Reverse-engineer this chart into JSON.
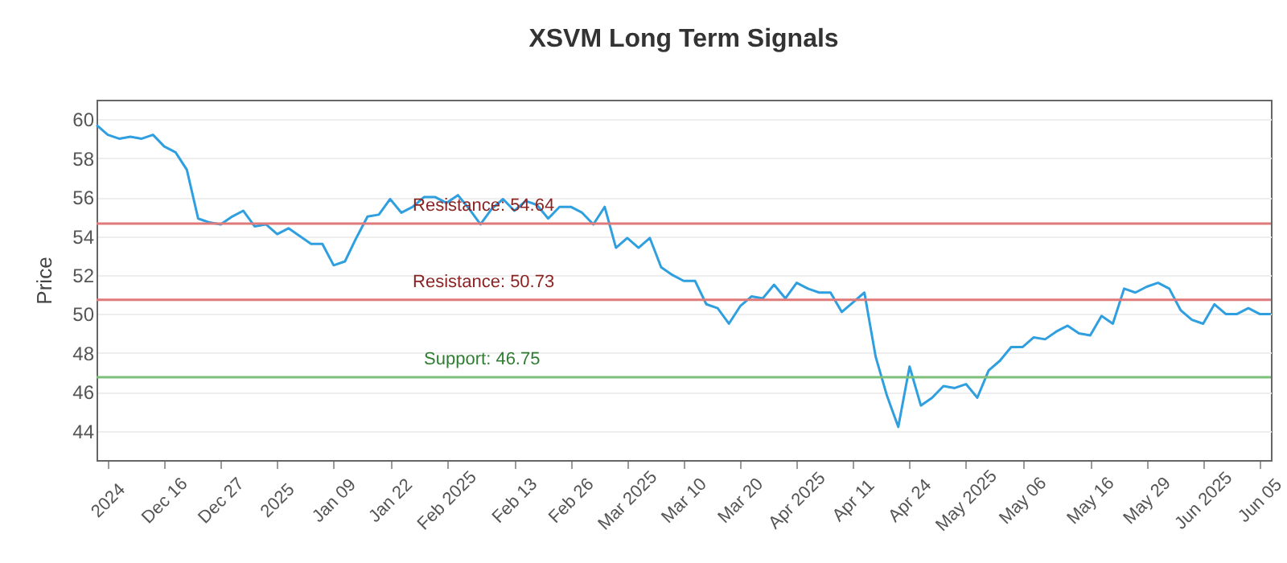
{
  "chart_data": {
    "type": "line",
    "title": "XSVM Long Term Signals",
    "ylabel": "Price",
    "categories": [
      null,
      "2024",
      null,
      null,
      null,
      null,
      "Dec 16",
      null,
      null,
      null,
      null,
      "Dec 27",
      null,
      null,
      null,
      null,
      "2025",
      null,
      null,
      null,
      null,
      "Jan 09",
      null,
      null,
      null,
      null,
      "Jan 22",
      null,
      null,
      null,
      null,
      "Feb 2025",
      null,
      null,
      null,
      null,
      null,
      "Feb 13",
      null,
      null,
      null,
      null,
      "Feb 26",
      null,
      null,
      null,
      null,
      "Mar 2025",
      null,
      null,
      null,
      null,
      "Mar 10",
      null,
      null,
      null,
      null,
      "Mar 20",
      null,
      null,
      null,
      null,
      "Apr 2025",
      null,
      null,
      null,
      null,
      "Apr 11",
      null,
      null,
      null,
      null,
      "Apr 24",
      null,
      null,
      null,
      null,
      "May 2025",
      null,
      null,
      null,
      null,
      "May 06",
      null,
      null,
      null,
      null,
      null,
      "May 16",
      null,
      null,
      null,
      null,
      "May 29",
      null,
      null,
      null,
      null,
      "Jun 2025",
      null,
      null,
      null,
      null,
      "Jun 05",
      null
    ],
    "series": [
      {
        "color": "#2f9fe0",
        "values": [
          59.7,
          59.2,
          59.0,
          59.1,
          59.0,
          59.2,
          58.6,
          58.3,
          57.4,
          54.9,
          54.7,
          54.6,
          55.0,
          55.3,
          54.5,
          54.6,
          54.1,
          54.4,
          54.0,
          53.6,
          53.6,
          52.5,
          52.7,
          53.9,
          55.0,
          55.1,
          55.9,
          55.2,
          55.5,
          56.0,
          56.0,
          55.7,
          56.1,
          55.4,
          54.6,
          55.4,
          55.9,
          55.3,
          55.8,
          55.6,
          54.9,
          55.5,
          55.5,
          55.2,
          54.6,
          55.5,
          53.4,
          53.9,
          53.4,
          53.9,
          52.4,
          52.0,
          51.7,
          51.7,
          50.5,
          50.3,
          49.5,
          50.4,
          50.9,
          50.8,
          51.5,
          50.8,
          51.6,
          51.3,
          51.1,
          51.1,
          50.1,
          50.6,
          51.1,
          47.8,
          45.8,
          44.2,
          47.3,
          45.3,
          45.7,
          46.3,
          46.2,
          46.4,
          45.7,
          47.1,
          47.6,
          48.3,
          48.3,
          48.8,
          48.7,
          49.1,
          49.4,
          49.0,
          48.9,
          49.9,
          49.5,
          51.3,
          51.1,
          51.4,
          51.6,
          51.3,
          50.2,
          49.7,
          49.5,
          50.5,
          50.0,
          50.0,
          50.3,
          50.0,
          50.0
        ]
      }
    ],
    "ylim": [
      42.5,
      61
    ],
    "yticks": [
      44,
      46,
      48,
      50,
      52,
      54,
      56,
      58,
      60
    ],
    "grid": "y",
    "marker": "none",
    "line_style": "solid",
    "ref_lines": [
      {
        "axis": "y",
        "value": 54.64,
        "label": "Resistance: 54.64",
        "color": "#e07a7a"
      },
      {
        "axis": "y",
        "value": 50.73,
        "label": "Resistance: 50.73",
        "color": "#e07a7a"
      },
      {
        "axis": "y",
        "value": 46.75,
        "label": "Support: 46.75",
        "color": "#7cc07c"
      }
    ]
  }
}
